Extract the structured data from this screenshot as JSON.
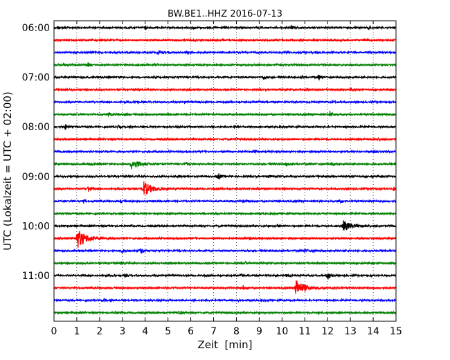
{
  "chart_data": {
    "type": "line",
    "title": "BW.BE1..HHZ 2016-07-13",
    "xlabel": "Zeit  [min]",
    "ylabel": "UTC (Lokalzeit = UTC + 02:00)",
    "xlim": [
      0,
      15
    ],
    "x_ticks": [
      0,
      1,
      2,
      3,
      4,
      5,
      6,
      7,
      8,
      9,
      10,
      11,
      12,
      13,
      14,
      15
    ],
    "y_tick_labels": [
      "06:00",
      "07:00",
      "08:00",
      "09:00",
      "10:00",
      "11:00"
    ],
    "y_tick_rows": [
      0,
      4,
      8,
      12,
      16,
      20
    ],
    "grid": "vertical-dotted",
    "legend": "none",
    "row_colors": [
      "#000000",
      "#ff0000",
      "#0000ff",
      "#008000"
    ],
    "rows": [
      {
        "start": "06:00",
        "events": [
          [
            0.15,
            2
          ],
          [
            4.0,
            2
          ],
          [
            6.1,
            2
          ],
          [
            10.4,
            3
          ],
          [
            13.8,
            2.5
          ]
        ]
      },
      {
        "start": "06:15",
        "events": [
          [
            6.1,
            1.5
          ],
          [
            10.8,
            2
          ],
          [
            13.6,
            1.5
          ]
        ]
      },
      {
        "start": "06:30",
        "events": [
          [
            1.6,
            1.5
          ],
          [
            4.6,
            3.5
          ],
          [
            5.8,
            1.5
          ],
          [
            10.2,
            1.5
          ]
        ]
      },
      {
        "start": "06:45",
        "events": [
          [
            0.4,
            1.5
          ],
          [
            1.5,
            2.5
          ],
          [
            4.4,
            2
          ]
        ]
      },
      {
        "start": "07:00",
        "events": [
          [
            9.2,
            3
          ],
          [
            11.6,
            5
          ],
          [
            10.9,
            1.5
          ]
        ]
      },
      {
        "start": "07:15",
        "events": [
          [
            0.4,
            1.5
          ],
          [
            11.1,
            2
          ],
          [
            13.0,
            2
          ]
        ]
      },
      {
        "start": "07:30",
        "events": [
          [
            3.6,
            2
          ],
          [
            6.4,
            1.5
          ],
          [
            9.0,
            1.5
          ],
          [
            12.2,
            1.5
          ]
        ]
      },
      {
        "start": "07:45",
        "events": [
          [
            2.4,
            3
          ],
          [
            3.1,
            1.5
          ],
          [
            12.1,
            5
          ]
        ]
      },
      {
        "start": "08:00",
        "events": [
          [
            0.5,
            3.5
          ],
          [
            2.8,
            1.5
          ],
          [
            7.9,
            1.5
          ]
        ]
      },
      {
        "start": "08:15",
        "events": [
          [
            14.2,
            1.5
          ]
        ]
      },
      {
        "start": "08:30",
        "events": [
          [
            8.8,
            1.5
          ],
          [
            14.0,
            1.5
          ]
        ]
      },
      {
        "start": "08:45",
        "events": [
          [
            1.6,
            2
          ],
          [
            3.4,
            7
          ],
          [
            5.8,
            2.5
          ],
          [
            10.2,
            2.5
          ],
          [
            12.2,
            2
          ]
        ]
      },
      {
        "start": "09:00",
        "events": [
          [
            7.2,
            5
          ],
          [
            9.4,
            2.5
          ],
          [
            11.6,
            2
          ],
          [
            13.9,
            1.5
          ]
        ]
      },
      {
        "start": "09:15",
        "events": [
          [
            1.5,
            5
          ],
          [
            3.9,
            11
          ],
          [
            8.9,
            1.5
          ],
          [
            10.1,
            2
          ],
          [
            14.9,
            2.5
          ]
        ]
      },
      {
        "start": "09:30",
        "events": [
          [
            1.3,
            1.5
          ],
          [
            2.9,
            2
          ],
          [
            8.3,
            1.5
          ],
          [
            12.5,
            3.5
          ]
        ]
      },
      {
        "start": "09:45",
        "events": [
          [
            7.1,
            1.5
          ],
          [
            11.5,
            1.5
          ]
        ]
      },
      {
        "start": "10:00",
        "events": [
          [
            9.8,
            2
          ],
          [
            12.7,
            7
          ]
        ]
      },
      {
        "start": "10:15",
        "events": [
          [
            1.0,
            15
          ],
          [
            8.6,
            1.5
          ]
        ]
      },
      {
        "start": "10:30",
        "events": [
          [
            3.0,
            4
          ],
          [
            3.8,
            6
          ],
          [
            11.0,
            3
          ],
          [
            11.4,
            2.5
          ]
        ]
      },
      {
        "start": "10:45",
        "events": [
          [
            3.0,
            2
          ],
          [
            8.4,
            1.5
          ]
        ]
      },
      {
        "start": "11:00",
        "events": [
          [
            3.1,
            1.5
          ],
          [
            8.2,
            3
          ],
          [
            10.2,
            2
          ],
          [
            12.0,
            6
          ]
        ]
      },
      {
        "start": "11:15",
        "events": [
          [
            8.3,
            3
          ],
          [
            10.6,
            12
          ],
          [
            12.3,
            2.5
          ]
        ]
      },
      {
        "start": "11:30",
        "events": [
          [
            2.2,
            1.5
          ],
          [
            8.1,
            1.5
          ]
        ]
      },
      {
        "start": "11:45",
        "events": [
          [
            2.7,
            1.5
          ],
          [
            5.5,
            3
          ],
          [
            11.6,
            1.5
          ]
        ]
      }
    ]
  }
}
